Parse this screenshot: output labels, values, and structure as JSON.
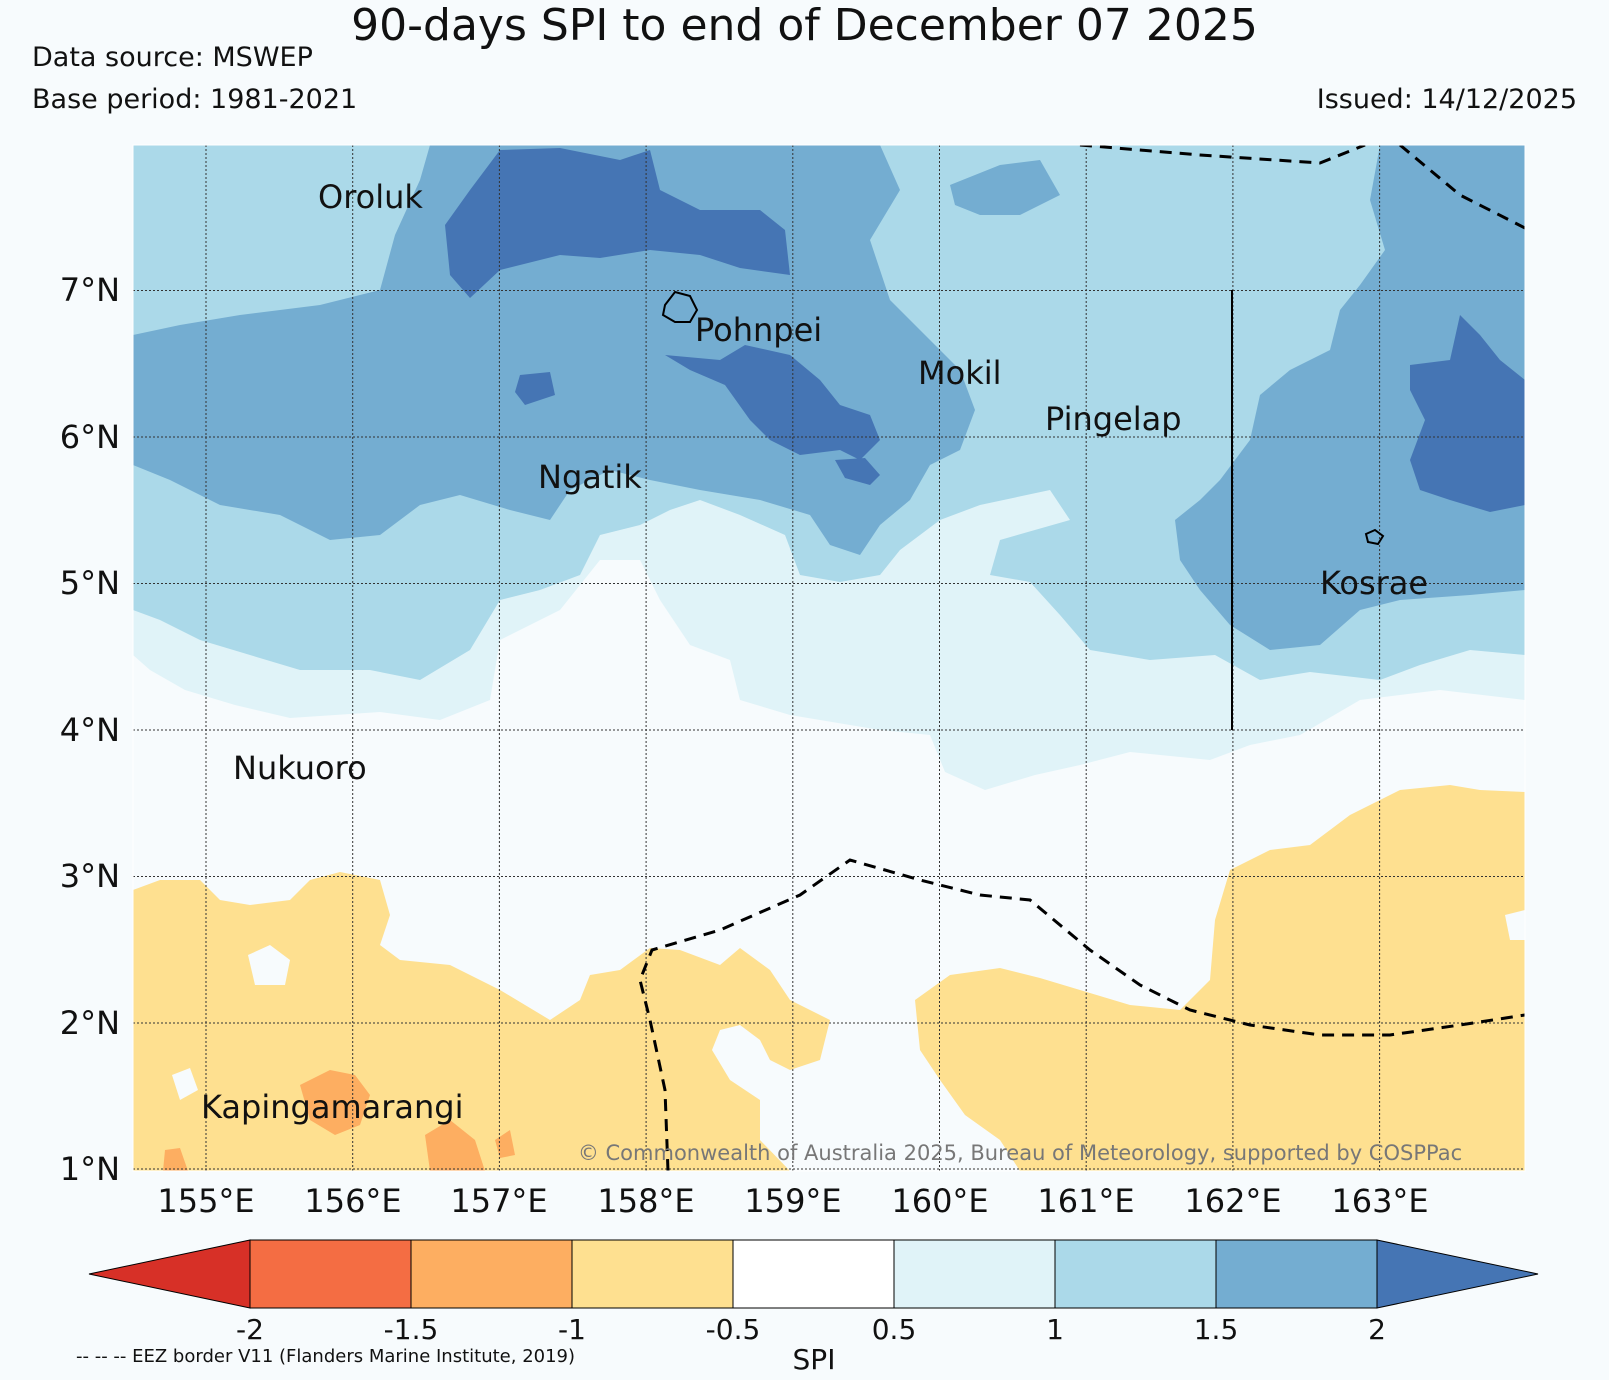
{
  "title": "90-days SPI to end of December 07 2025",
  "data_source": "Data source: MSWEP",
  "base_period": "Base period: 1981-2021",
  "issued": "Issued: 14/12/2025",
  "lat_labels": [
    "7°N",
    "6°N",
    "5°N",
    "4°N",
    "3°N",
    "2°N",
    "1°N"
  ],
  "lon_labels": [
    "155°E",
    "156°E",
    "157°E",
    "158°E",
    "159°E",
    "160°E",
    "161°E",
    "162°E",
    "163°E"
  ],
  "places": [
    "Oroluk",
    "Pohnpei",
    "Mokil",
    "Pingelap",
    "Ngatik",
    "Kosrae",
    "Nukuoro",
    "Kapingamarangi"
  ],
  "copyright": "© Commonwealth of Australia 2025, Bureau of Meteorology, supported by COSPPac",
  "colorbar": {
    "label": "SPI",
    "ticks": [
      "-2",
      "-1.5",
      "-1",
      "-0.5",
      "0.5",
      "1",
      "1.5",
      "2"
    ],
    "colors": [
      "#d73027",
      "#f46d43",
      "#fdae61",
      "#fee090",
      "#ffffff",
      "#e0f3f8",
      "#abd9e9",
      "#74add1",
      "#4575b4"
    ]
  },
  "eez_note": "-- -- -- EEZ border V11 (Flanders Marine Institute, 2019)"
}
